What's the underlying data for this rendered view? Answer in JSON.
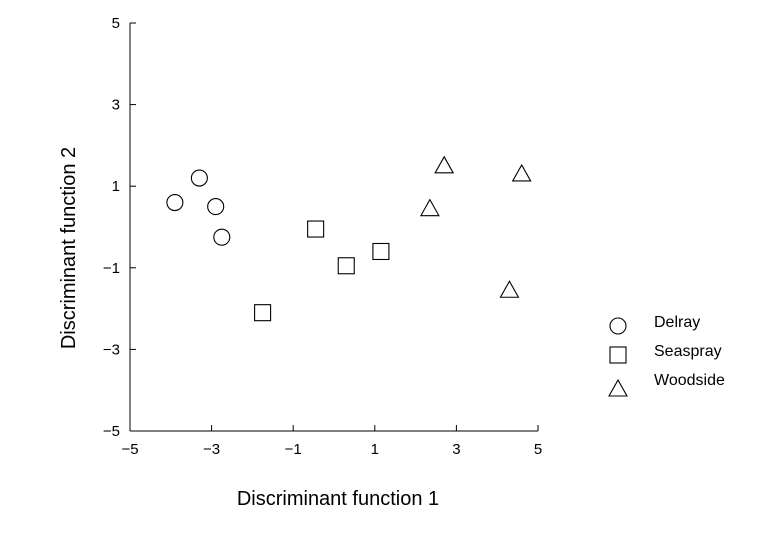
{
  "chart_data": {
    "type": "scatter",
    "title": "",
    "xlabel": "Discriminant function 1",
    "ylabel": "Discriminant function 2",
    "xlim": [
      -5,
      5
    ],
    "ylim": [
      -5,
      5
    ],
    "xticks": [
      "−5",
      "−3",
      "−1",
      "1",
      "3",
      "5"
    ],
    "yticks": [
      "5",
      "3",
      "1",
      "−1",
      "−3",
      "−5"
    ],
    "grid": false,
    "legend_position": "right",
    "series": [
      {
        "name": "Delray",
        "marker": "circle",
        "points": [
          [
            -3.9,
            0.6
          ],
          [
            -3.3,
            1.2
          ],
          [
            -2.9,
            0.5
          ],
          [
            -2.75,
            -0.25
          ]
        ]
      },
      {
        "name": "Seaspray",
        "marker": "square",
        "points": [
          [
            -1.75,
            -2.1
          ],
          [
            -0.45,
            -0.05
          ],
          [
            0.3,
            -0.95
          ],
          [
            1.15,
            -0.6
          ]
        ]
      },
      {
        "name": "Woodside",
        "marker": "triangle",
        "points": [
          [
            2.35,
            0.45
          ],
          [
            2.7,
            1.5
          ],
          [
            4.3,
            -1.55
          ],
          [
            4.6,
            1.3
          ]
        ]
      }
    ]
  }
}
